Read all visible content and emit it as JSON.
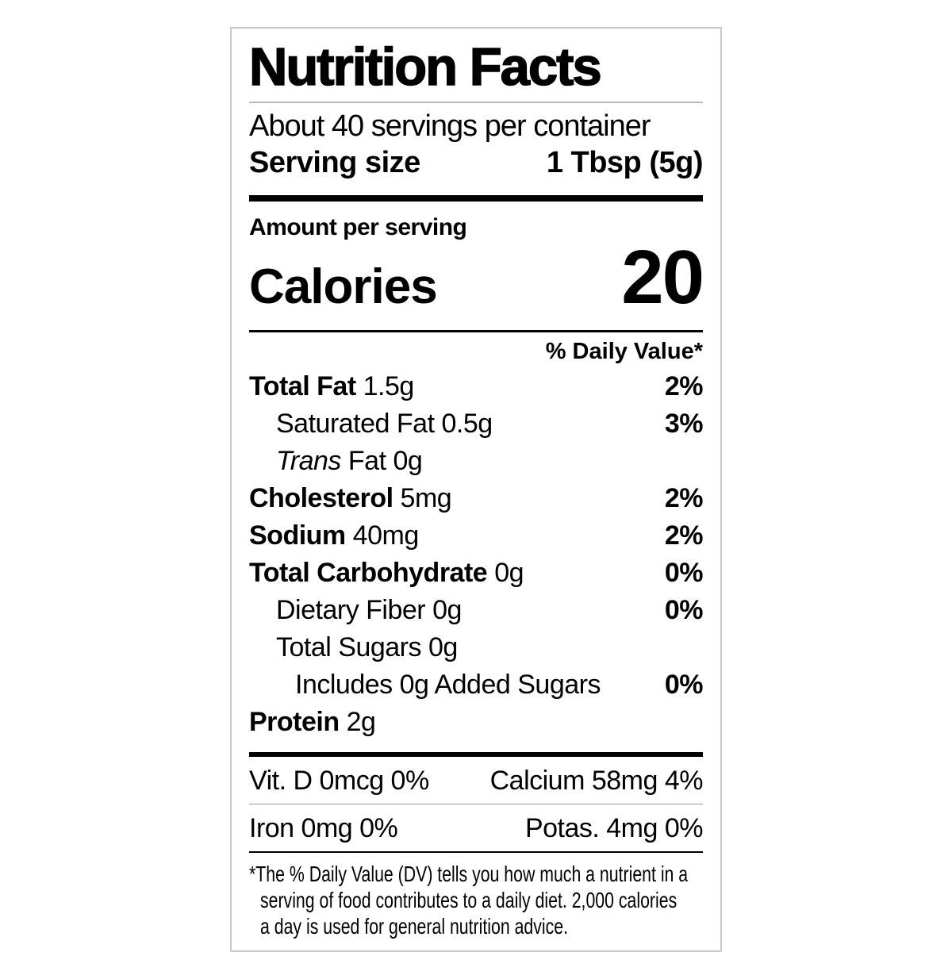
{
  "label": {
    "title": "Nutrition Facts",
    "servings_per_container": "About 40 servings per container",
    "serving_size": {
      "label": "Serving size",
      "value": "1 Tbsp (5g)"
    },
    "amount_per_serving": "Amount per serving",
    "calories": {
      "label": "Calories",
      "value": "20"
    },
    "daily_value_header": "% Daily Value*",
    "nutrients": [
      {
        "name": "Total Fat",
        "amount": "1.5g",
        "dv": "2%"
      },
      {
        "name": "Saturated Fat",
        "amount": "0.5g",
        "dv": "3%"
      },
      {
        "name_italic": "Trans",
        "name_rest": "Fat",
        "amount": "0g",
        "dv": ""
      },
      {
        "name": "Cholesterol",
        "amount": "5mg",
        "dv": "2%"
      },
      {
        "name": "Sodium",
        "amount": "40mg",
        "dv": "2%"
      },
      {
        "name": "Total Carbohydrate",
        "amount": "0g",
        "dv": "0%"
      },
      {
        "name": "Dietary Fiber",
        "amount": "0g",
        "dv": "0%"
      },
      {
        "name": "Total Sugars",
        "amount": "0g",
        "dv": ""
      },
      {
        "name": "Includes 0g Added Sugars",
        "amount": "",
        "dv": "0%"
      },
      {
        "name": "Protein",
        "amount": "2g",
        "dv": ""
      }
    ],
    "micronutrients": [
      {
        "left": "Vit. D 0mcg 0%",
        "right": "Calcium 58mg 4%"
      },
      {
        "left": "Iron 0mg 0%",
        "right": "Potas. 4mg 0%"
      }
    ],
    "footnote_lines": [
      "*The % Daily Value (DV) tells you how much a nutrient in a",
      "serving of food contributes to a daily diet. 2,000 calories",
      "a day is used for general nutrition advice."
    ],
    "colors": {
      "text": "#000000",
      "border": "#c8c8c8",
      "rule_light": "#b7b7b7"
    }
  }
}
